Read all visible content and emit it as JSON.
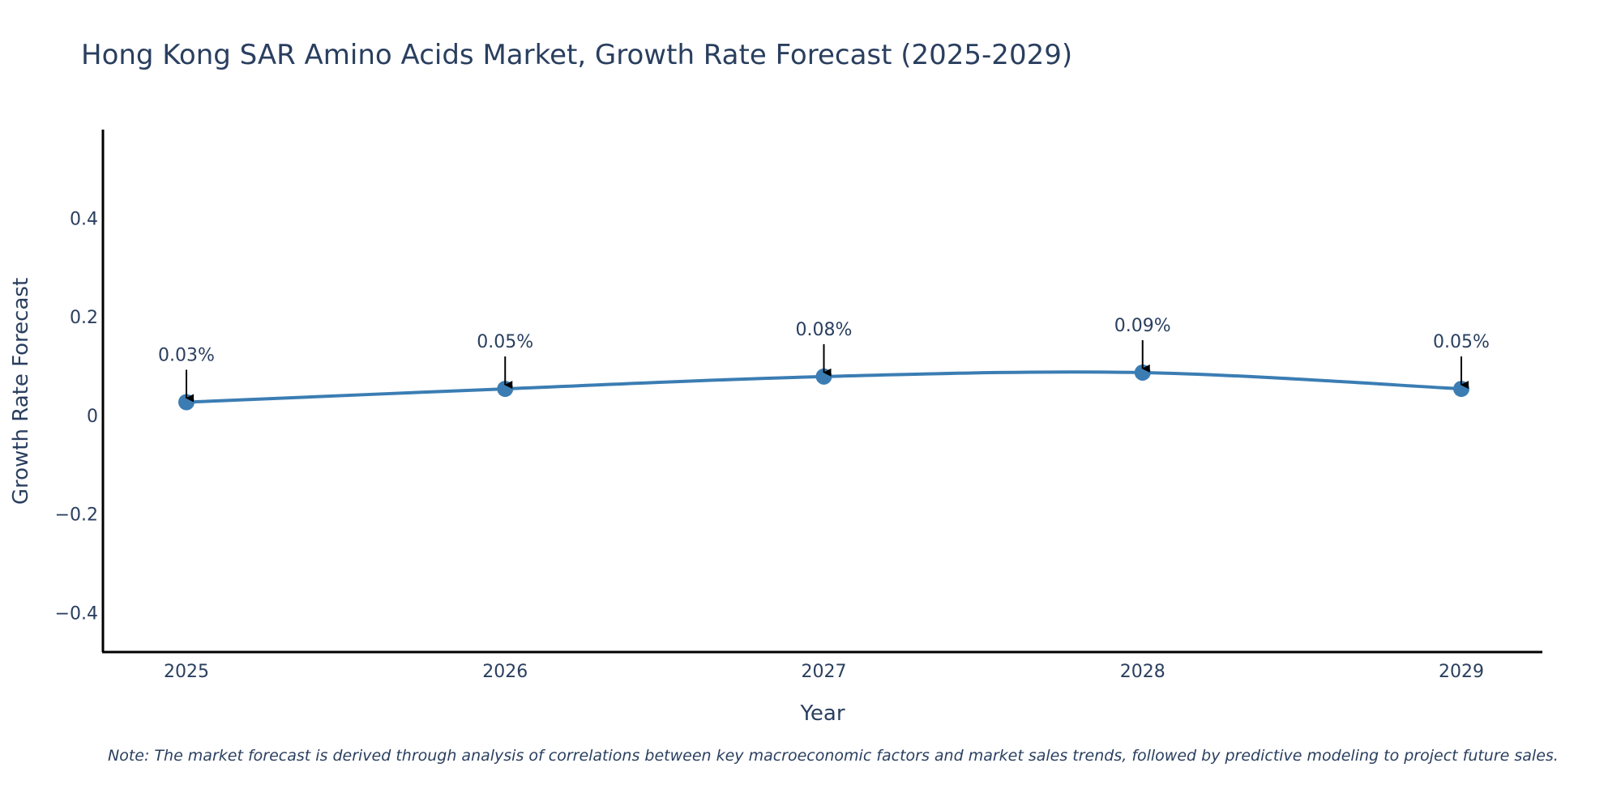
{
  "chart_data": {
    "type": "line",
    "title": "Hong Kong SAR Amino Acids Market, Growth Rate Forecast (2025-2029)",
    "xlabel": "Year",
    "ylabel": "Growth Rate Forecast",
    "categories": [
      "2025",
      "2026",
      "2027",
      "2028",
      "2029"
    ],
    "series": [
      {
        "name": "Growth Rate Forecast",
        "values": [
          0.027,
          0.054,
          0.079,
          0.087,
          0.054
        ],
        "labels": [
          "0.03%",
          "0.05%",
          "0.08%",
          "0.09%",
          "0.05%"
        ],
        "color": "#3b7db3"
      }
    ],
    "ylim": [
      -0.48,
      0.58
    ],
    "yticks": [
      -0.4,
      -0.2,
      0,
      0.2,
      0.4
    ],
    "ytick_labels": [
      "−0.4",
      "−0.2",
      "0",
      "0.2",
      "0.4"
    ],
    "grid": false,
    "line_shape": "spline",
    "note": "Note: The market forecast is derived through analysis of correlations between key macroeconomic factors and market sales trends, followed by predictive modeling to project future sales."
  }
}
